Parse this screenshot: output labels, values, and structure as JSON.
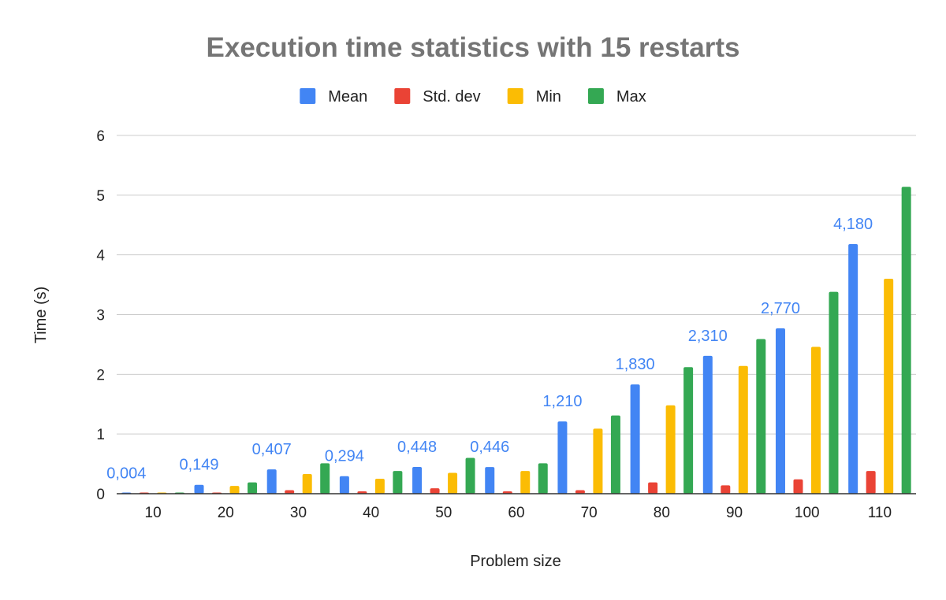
{
  "chart_data": {
    "type": "bar",
    "title": "Execution time statistics with 15 restarts",
    "xlabel": "Problem size",
    "ylabel": "Time (s)",
    "ylim": [
      0,
      6
    ],
    "y_ticks": [
      "0",
      "1",
      "2",
      "3",
      "4",
      "5",
      "6"
    ],
    "grid": true,
    "legend_position": "top",
    "categories": [
      "10",
      "20",
      "30",
      "40",
      "50",
      "60",
      "70",
      "80",
      "90",
      "100",
      "110"
    ],
    "series": [
      {
        "name": "Mean",
        "color": "#4285F4",
        "values": [
          0.004,
          0.149,
          0.407,
          0.294,
          0.448,
          0.446,
          1.21,
          1.83,
          2.31,
          2.77,
          4.18
        ]
      },
      {
        "name": "Std. dev",
        "color": "#EA4335",
        "values": [
          0.002,
          0.01,
          0.06,
          0.04,
          0.09,
          0.04,
          0.06,
          0.19,
          0.14,
          0.24,
          0.38
        ]
      },
      {
        "name": "Min",
        "color": "#FBBC04",
        "values": [
          0.002,
          0.13,
          0.33,
          0.25,
          0.35,
          0.38,
          1.09,
          1.48,
          2.14,
          2.46,
          3.6
        ]
      },
      {
        "name": "Max",
        "color": "#34A853",
        "values": [
          0.006,
          0.19,
          0.51,
          0.38,
          0.6,
          0.51,
          1.31,
          2.12,
          2.59,
          3.38,
          5.14
        ]
      }
    ],
    "data_labels": {
      "series": "Mean",
      "color": "#4285F4",
      "texts": [
        "0,004",
        "0,149",
        "0,407",
        "0,294",
        "0,448",
        "0,446",
        "1,210",
        "1,830",
        "2,310",
        "2,770",
        "4,180"
      ]
    }
  }
}
